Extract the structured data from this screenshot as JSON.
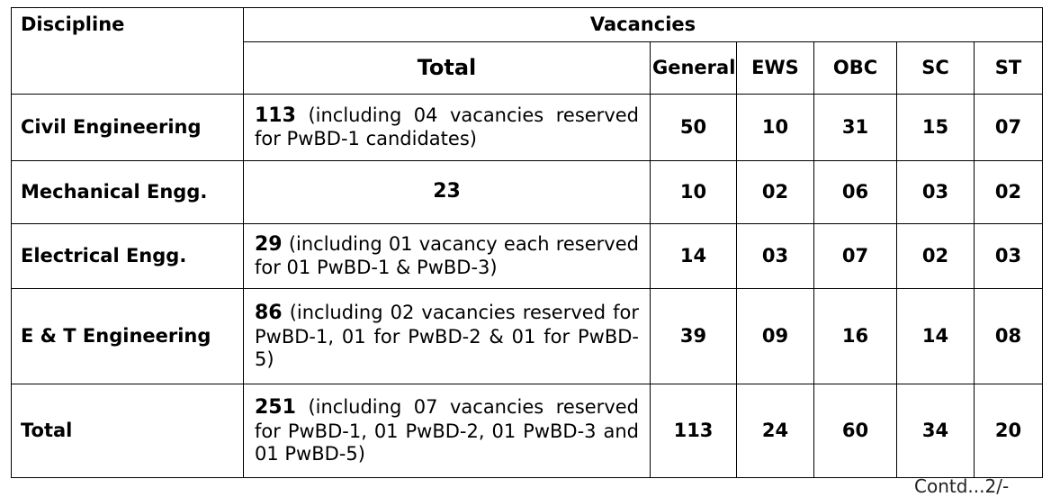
{
  "header": {
    "discipline": "Discipline",
    "vacancies": "Vacancies",
    "total": "Total",
    "general": "General",
    "ews": "EWS",
    "obc": "OBC",
    "sc": "SC",
    "st": "ST"
  },
  "rows": [
    {
      "discipline": "Civil Engineering",
      "total_num": "113",
      "total_note": "(including 04 vacancies reserved for  PwBD-1 candidates)",
      "general": "50",
      "ews": "10",
      "obc": "31",
      "sc": "15",
      "st": "07"
    },
    {
      "discipline": "Mechanical Engg.",
      "total_num": "23",
      "total_note": "",
      "general": "10",
      "ews": "02",
      "obc": "06",
      "sc": "03",
      "st": "02"
    },
    {
      "discipline": "Electrical Engg.",
      "total_num": "29",
      "total_note": "(including 01 vacancy each reserved for 01 PwBD-1 & PwBD-3)",
      "general": "14",
      "ews": "03",
      "obc": "07",
      "sc": "02",
      "st": "03"
    },
    {
      "discipline": "E & T Engineering",
      "total_num": "86",
      "total_note": "(including 02 vacancies reserved for PwBD-1, 01 for PwBD-2 & 01 for PwBD-5)",
      "general": "39",
      "ews": "09",
      "obc": "16",
      "sc": "14",
      "st": "08"
    },
    {
      "discipline": "Total",
      "total_num": "251",
      "total_note": "(including 07 vacancies reserved for PwBD-1, 01 PwBD-2, 01 PwBD-3 and 01 PwBD-5)",
      "general": "113",
      "ews": "24",
      "obc": "60",
      "sc": "34",
      "st": "20"
    }
  ],
  "footer_text": "Contd...2/-"
}
